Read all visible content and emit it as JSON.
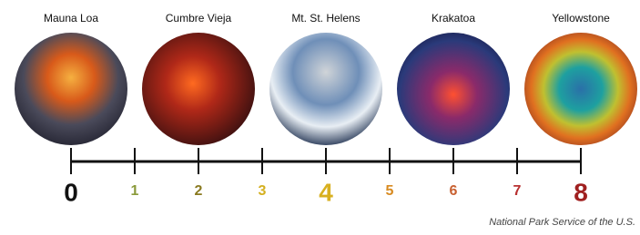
{
  "volcanoes": [
    {
      "label": "Mauna Loa"
    },
    {
      "label": "Cumbre Vieja"
    },
    {
      "label": "Mt. St. Helens"
    },
    {
      "label": "Krakatoa"
    },
    {
      "label": "Yellowstone"
    }
  ],
  "scale": [
    0,
    1,
    2,
    3,
    4,
    5,
    6,
    7,
    8
  ],
  "credit": "National Park Service of the U.S."
}
